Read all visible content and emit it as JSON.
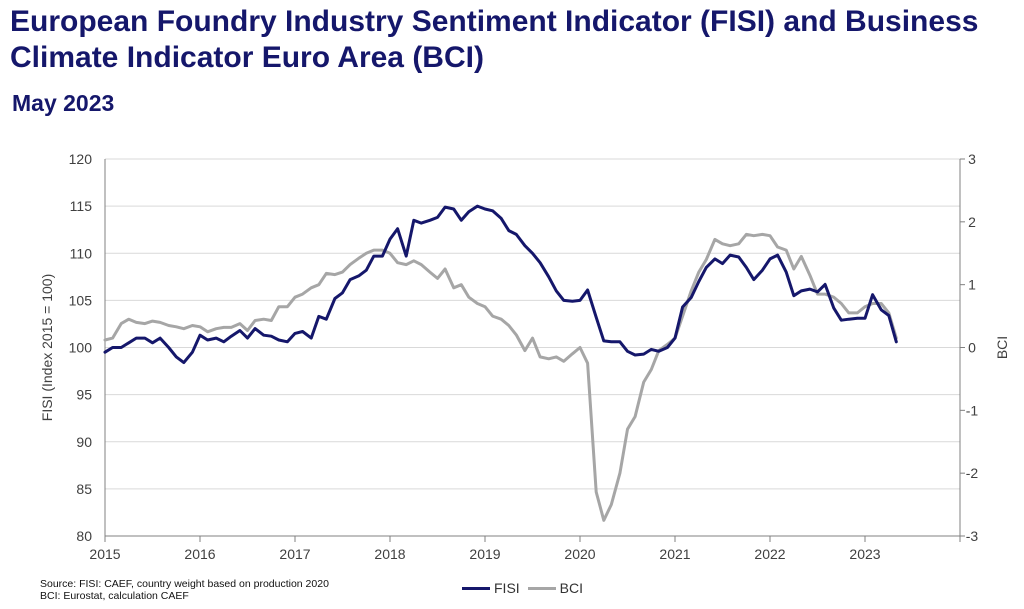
{
  "header": {
    "title": "European Foundry Industry Sentiment Indicator (FISI) and Business Climate Indicator Euro Area (BCI)",
    "subtitle": "May 2023"
  },
  "footer": {
    "source_line1": "Source: FISI: CAEF, country weight based on production 2020",
    "source_line2": "BCI: Eurostat, calculation CAEF"
  },
  "colors": {
    "fisi": "#15176b",
    "bci": "#a6a6a6",
    "grid": "#d9d9d9",
    "axis": "#808080"
  },
  "chart_data": {
    "type": "line",
    "xlabel": "",
    "ylabel": "FISI (Index 2015 = 100)",
    "y2label": "BCI",
    "xlim": [
      2015,
      2024.0
    ],
    "ylim": [
      80,
      120
    ],
    "y2lim": [
      -3,
      3
    ],
    "yticks": [
      80,
      85,
      90,
      95,
      100,
      105,
      110,
      115,
      120
    ],
    "y2ticks": [
      -3,
      -2,
      -1,
      0,
      1,
      2,
      3
    ],
    "xticks": [
      "2015",
      "2016",
      "2017",
      "2018",
      "2019",
      "2020",
      "2021",
      "2022",
      "2023"
    ],
    "grid": true,
    "legend_position": "bottom",
    "series": [
      {
        "name": "FISI",
        "axis": "left",
        "x": [
          2015.0,
          2015.08,
          2015.17,
          2015.25,
          2015.33,
          2015.42,
          2015.5,
          2015.58,
          2015.67,
          2015.75,
          2015.83,
          2015.92,
          2016.0,
          2016.08,
          2016.17,
          2016.25,
          2016.33,
          2016.42,
          2016.5,
          2016.58,
          2016.67,
          2016.75,
          2016.83,
          2016.92,
          2017.0,
          2017.08,
          2017.17,
          2017.25,
          2017.33,
          2017.42,
          2017.5,
          2017.58,
          2017.67,
          2017.75,
          2017.83,
          2017.92,
          2018.0,
          2018.08,
          2018.17,
          2018.25,
          2018.33,
          2018.42,
          2018.5,
          2018.58,
          2018.67,
          2018.75,
          2018.83,
          2018.92,
          2019.0,
          2019.08,
          2019.17,
          2019.25,
          2019.33,
          2019.42,
          2019.5,
          2019.58,
          2019.67,
          2019.75,
          2019.83,
          2019.92,
          2020.0,
          2020.08,
          2020.17,
          2020.25,
          2020.33,
          2020.42,
          2020.5,
          2020.58,
          2020.67,
          2020.75,
          2020.83,
          2020.92,
          2021.0,
          2021.08,
          2021.17,
          2021.25,
          2021.33,
          2021.42,
          2021.5,
          2021.58,
          2021.67,
          2021.75,
          2021.83,
          2021.92,
          2022.0,
          2022.08,
          2022.17,
          2022.25,
          2022.33,
          2022.42,
          2022.5,
          2022.58,
          2022.67,
          2022.75,
          2022.83,
          2022.92,
          2023.0,
          2023.08,
          2023.17,
          2023.25,
          2023.33
        ],
        "values": [
          99.5,
          100.0,
          100.0,
          100.5,
          101.0,
          101.0,
          100.5,
          101.0,
          100.0,
          99.0,
          98.4,
          99.5,
          101.3,
          100.8,
          101.0,
          100.6,
          101.2,
          101.8,
          101.0,
          102.0,
          101.3,
          101.2,
          100.8,
          100.6,
          101.5,
          101.7,
          101.0,
          103.3,
          103.0,
          105.2,
          105.8,
          107.2,
          107.6,
          108.2,
          109.7,
          109.7,
          111.5,
          112.6,
          109.7,
          113.5,
          113.2,
          113.5,
          113.8,
          114.9,
          114.7,
          113.5,
          114.4,
          115.0,
          114.7,
          114.5,
          113.7,
          112.4,
          112.0,
          110.8,
          110.0,
          109.0,
          107.5,
          106.0,
          105.0,
          104.9,
          105.0,
          106.1,
          103.2,
          100.7,
          100.6,
          100.6,
          99.6,
          99.2,
          99.3,
          99.8,
          99.6,
          100.0,
          101.0,
          104.3,
          105.3,
          107.0,
          108.5,
          109.4,
          108.9,
          109.8,
          109.6,
          108.5,
          107.2,
          108.2,
          109.4,
          109.8,
          108.0,
          105.5,
          106.0,
          106.2,
          105.9,
          106.7,
          104.2,
          102.9,
          103.0,
          103.1,
          103.1,
          105.6,
          104.0,
          103.4,
          100.6
        ]
      },
      {
        "name": "BCI",
        "axis": "right",
        "x": [
          2015.0,
          2015.08,
          2015.17,
          2015.25,
          2015.33,
          2015.42,
          2015.5,
          2015.58,
          2015.67,
          2015.75,
          2015.83,
          2015.92,
          2016.0,
          2016.08,
          2016.17,
          2016.25,
          2016.33,
          2016.42,
          2016.5,
          2016.58,
          2016.67,
          2016.75,
          2016.83,
          2016.92,
          2017.0,
          2017.08,
          2017.17,
          2017.25,
          2017.33,
          2017.42,
          2017.5,
          2017.58,
          2017.67,
          2017.75,
          2017.83,
          2017.92,
          2018.0,
          2018.08,
          2018.17,
          2018.25,
          2018.33,
          2018.42,
          2018.5,
          2018.58,
          2018.67,
          2018.75,
          2018.83,
          2018.92,
          2019.0,
          2019.08,
          2019.17,
          2019.25,
          2019.33,
          2019.42,
          2019.5,
          2019.58,
          2019.67,
          2019.75,
          2019.83,
          2019.92,
          2020.0,
          2020.08,
          2020.17,
          2020.25,
          2020.33,
          2020.42,
          2020.5,
          2020.58,
          2020.67,
          2020.75,
          2020.83,
          2020.92,
          2021.0,
          2021.08,
          2021.17,
          2021.25,
          2021.33,
          2021.42,
          2021.5,
          2021.58,
          2021.67,
          2021.75,
          2021.83,
          2021.92,
          2022.0,
          2022.08,
          2022.17,
          2022.25,
          2022.33,
          2022.42,
          2022.5,
          2022.58,
          2022.67,
          2022.75,
          2022.83,
          2022.92,
          2023.0,
          2023.08,
          2023.17,
          2023.25,
          2023.33
        ],
        "values": [
          0.12,
          0.15,
          0.38,
          0.45,
          0.4,
          0.38,
          0.42,
          0.4,
          0.35,
          0.33,
          0.3,
          0.35,
          0.33,
          0.25,
          0.3,
          0.32,
          0.32,
          0.38,
          0.27,
          0.43,
          0.45,
          0.43,
          0.65,
          0.65,
          0.8,
          0.85,
          0.95,
          1.0,
          1.18,
          1.16,
          1.2,
          1.32,
          1.42,
          1.5,
          1.55,
          1.55,
          1.5,
          1.35,
          1.32,
          1.38,
          1.32,
          1.2,
          1.1,
          1.25,
          0.95,
          1.0,
          0.8,
          0.7,
          0.65,
          0.5,
          0.45,
          0.35,
          0.2,
          -0.05,
          0.15,
          -0.15,
          -0.18,
          -0.15,
          -0.22,
          -0.1,
          0.0,
          -0.25,
          -2.3,
          -2.75,
          -2.5,
          -2.0,
          -1.3,
          -1.1,
          -0.55,
          -0.35,
          -0.05,
          0.05,
          0.15,
          0.5,
          0.9,
          1.2,
          1.4,
          1.72,
          1.65,
          1.62,
          1.65,
          1.8,
          1.78,
          1.8,
          1.78,
          1.6,
          1.55,
          1.25,
          1.45,
          1.15,
          0.85,
          0.85,
          0.8,
          0.7,
          0.55,
          0.55,
          0.65,
          0.7,
          0.7,
          0.55,
          0.15
        ]
      }
    ]
  }
}
